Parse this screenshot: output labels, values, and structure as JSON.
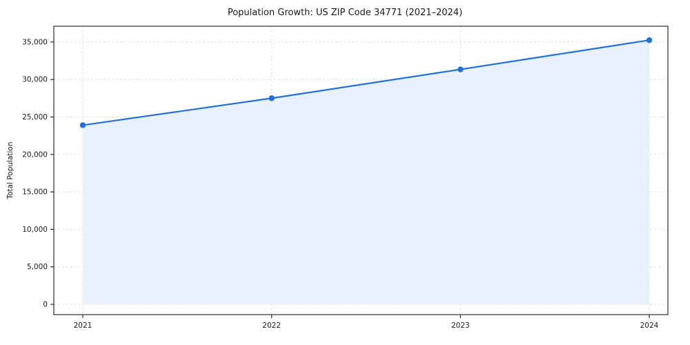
{
  "chart_data": {
    "type": "line",
    "title": "Population Growth: US ZIP Code 34771 (2021–2024)",
    "xlabel": "",
    "ylabel": "Total Population",
    "x": [
      2021,
      2022,
      2023,
      2024
    ],
    "x_tick_labels": [
      "2021",
      "2022",
      "2023",
      "2024"
    ],
    "series": [
      {
        "name": "Total Population",
        "values": [
          23900,
          27500,
          31350,
          35250
        ]
      }
    ],
    "ylim": [
      0,
      35000
    ],
    "yticks": [
      0,
      5000,
      10000,
      15000,
      20000,
      25000,
      30000,
      35000
    ],
    "grid": true,
    "grid_style": "dashed",
    "legend_position": "none",
    "line_color": "#1f6fe0",
    "marker_color": "#1f6fe0",
    "fill_color": "#e8f0fc",
    "grid_color": "#dddddd",
    "spine_color": "#2b2b2b",
    "background_color": "#ffffff"
  }
}
